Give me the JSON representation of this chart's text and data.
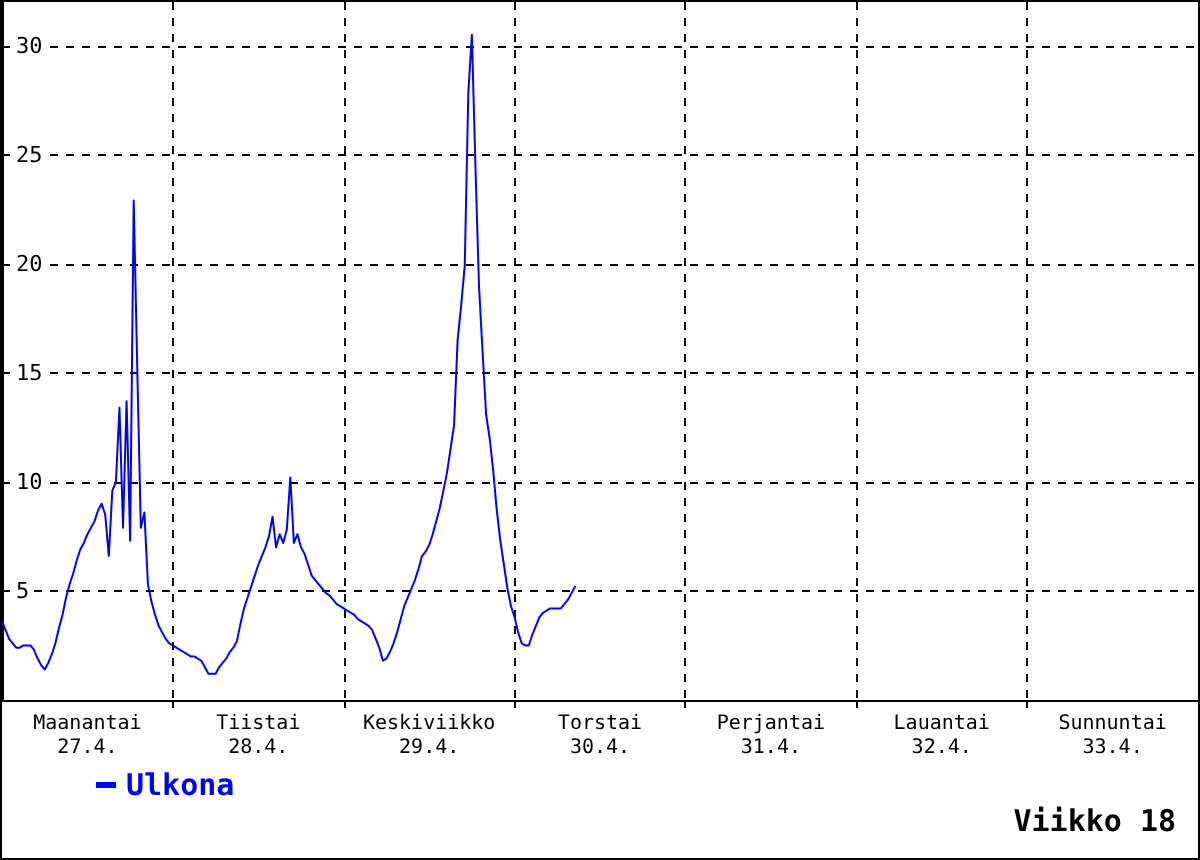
{
  "chart_data": {
    "type": "line",
    "title": "Viikko 18",
    "categories": [
      null,
      null,
      null,
      null,
      null,
      null,
      null,
      null,
      null,
      null,
      null,
      null,
      null,
      null,
      null,
      null,
      null,
      null,
      null,
      null,
      null,
      null,
      null,
      null,
      "Maanantai\n27.4.",
      null,
      null,
      null,
      null,
      null,
      null,
      null,
      null,
      null,
      null,
      null,
      null,
      null,
      null,
      null,
      null,
      null,
      null,
      null,
      null,
      null,
      null,
      null,
      null,
      null,
      null,
      null,
      null,
      null,
      null,
      null,
      null,
      null,
      null,
      null,
      null,
      null,
      null,
      null,
      null,
      null,
      null,
      null,
      null,
      null,
      null,
      null,
      "Tiistai\n28.4.",
      null,
      null,
      null,
      null,
      null,
      null,
      null,
      null,
      null,
      null,
      null,
      null,
      null,
      null,
      null,
      null,
      null,
      null,
      null,
      null,
      null,
      null,
      null,
      null,
      null,
      null,
      null,
      null,
      null,
      null,
      null,
      null,
      null,
      null,
      null,
      null,
      null,
      null,
      null,
      null,
      null,
      null,
      null,
      null,
      null,
      null,
      null,
      "Keskiviikko\n29.4.",
      null,
      null,
      null,
      null,
      null,
      null,
      null,
      null,
      null,
      null,
      null,
      null,
      null,
      null,
      null,
      null,
      null,
      null,
      null,
      null,
      null,
      null,
      null,
      null,
      null,
      null,
      null,
      null,
      null,
      null,
      null,
      null,
      null,
      null,
      null,
      null,
      null,
      null,
      null,
      null,
      null,
      null,
      null,
      null,
      null,
      null,
      null,
      "Torstai\n30.4.",
      null,
      null,
      null,
      null,
      null,
      null,
      null,
      null,
      null,
      null,
      null,
      null,
      null,
      null,
      null,
      null,
      null,
      null,
      null,
      null,
      null,
      null,
      null,
      null,
      null,
      null,
      null,
      null,
      null,
      null,
      null,
      null,
      null,
      null,
      null,
      null,
      null,
      null,
      null,
      null,
      null,
      null,
      null,
      null,
      null,
      null,
      null,
      "Perjantai\n31.4.",
      null,
      null,
      null,
      null,
      null,
      null,
      null,
      null,
      null,
      null,
      null,
      null,
      null,
      null,
      null,
      null,
      null,
      null,
      null,
      null,
      null,
      null,
      null,
      null,
      null,
      null,
      null,
      null,
      null,
      null,
      null,
      null,
      null,
      null,
      null,
      null,
      null,
      null,
      null,
      null,
      null,
      null,
      null,
      null,
      null,
      null,
      null,
      "Lauantai\n32.4.",
      null,
      null,
      null,
      null,
      null,
      null,
      null,
      null,
      null,
      null,
      null,
      null,
      null,
      null,
      null,
      null,
      null,
      null,
      null,
      null,
      null,
      null,
      null,
      null,
      null,
      null,
      null,
      null,
      null,
      null,
      null,
      null,
      null,
      null,
      null,
      null,
      null,
      null,
      null,
      null,
      null,
      null,
      null,
      null,
      null,
      null,
      null,
      "Sunnuntai\n33.4.",
      null,
      null,
      null,
      null,
      null,
      null,
      null,
      null,
      null,
      null,
      null,
      null,
      null,
      null,
      null,
      null,
      null,
      null,
      null,
      null,
      null,
      null,
      null,
      null
    ],
    "series": [
      {
        "name": "Ulkona",
        "color": "#0000ff",
        "values": [
          3.6,
          3.2,
          2.8,
          2.6,
          2.4,
          2.4,
          2.5,
          2.5,
          2.5,
          2.3,
          1.9,
          1.6,
          1.4,
          1.7,
          2.1,
          2.6,
          3.3,
          3.9,
          4.7,
          5.3,
          5.8,
          6.4,
          6.9,
          7.2,
          7.6,
          7.9,
          8.2,
          8.7,
          9.0,
          8.5,
          6.6,
          9.6,
          10.0,
          13.4,
          7.9,
          13.7,
          7.3,
          22.9,
          15.2,
          7.9,
          8.6,
          5.3,
          4.5,
          3.9,
          3.4,
          3.1,
          2.8,
          2.6,
          2.5,
          2.4,
          2.3,
          2.2,
          2.1,
          2.0,
          2.0,
          1.9,
          1.8,
          1.5,
          1.2,
          1.2,
          1.2,
          1.5,
          1.7,
          1.9,
          2.2,
          2.4,
          2.7,
          3.5,
          4.2,
          4.7,
          5.2,
          5.7,
          6.2,
          6.6,
          7.0,
          7.5,
          8.4,
          7.0,
          7.6,
          7.2,
          7.8,
          10.2,
          7.2,
          7.6,
          7.0,
          6.7,
          6.2,
          5.7,
          5.5,
          5.3,
          5.1,
          4.9,
          4.8,
          4.6,
          4.4,
          4.3,
          4.2,
          4.1,
          4.0,
          3.9,
          3.7,
          3.6,
          3.5,
          3.4,
          3.2,
          2.8,
          2.4,
          1.8,
          1.9,
          2.2,
          2.6,
          3.1,
          3.7,
          4.3,
          4.7,
          5.1,
          5.5,
          6.0,
          6.6,
          6.8,
          7.1,
          7.6,
          8.2,
          8.8,
          9.6,
          10.4,
          11.5,
          12.6,
          16.5,
          18.1,
          19.9,
          27.8,
          30.5,
          24.5,
          19.0,
          16.0,
          13.1,
          12.0,
          10.5,
          8.7,
          7.3,
          6.2,
          5.1,
          4.3,
          3.8,
          3.1,
          2.6,
          2.5,
          2.5,
          3.0,
          3.4,
          3.8,
          4.0,
          4.1,
          4.2,
          4.2,
          4.2,
          4.2,
          4.4,
          4.6,
          4.9,
          5.2,
          null,
          null,
          null,
          null,
          null,
          null,
          null,
          null,
          null,
          null,
          null,
          null,
          null,
          null,
          null,
          null,
          null,
          null,
          null,
          null,
          null,
          null,
          null,
          null,
          null,
          null,
          null,
          null,
          null,
          null,
          null,
          null,
          null,
          null,
          null,
          null,
          null,
          null,
          null,
          null,
          null,
          null,
          null,
          null,
          null,
          null,
          null,
          null,
          null,
          null,
          null,
          null,
          null,
          null,
          null,
          null,
          null,
          null,
          null,
          null,
          null,
          null,
          null,
          null,
          null,
          null,
          null,
          null,
          null,
          null,
          null,
          null,
          null,
          null,
          null,
          null,
          null,
          null,
          null,
          null,
          null,
          null,
          null,
          null,
          null,
          null,
          null,
          null,
          null,
          null,
          null,
          null,
          null,
          null,
          null,
          null,
          null,
          null,
          null,
          null,
          null,
          null,
          null,
          null,
          null,
          null,
          null,
          null,
          null,
          null,
          null,
          null,
          null,
          null,
          null,
          null,
          null,
          null,
          null,
          null,
          null,
          null,
          null,
          null,
          null,
          null,
          null,
          null,
          null,
          null,
          null,
          null,
          null,
          null,
          null,
          null,
          null,
          null,
          null,
          null,
          null,
          null,
          null,
          null,
          null,
          null,
          null,
          null,
          null,
          null,
          null,
          null,
          null,
          null,
          null,
          null,
          null,
          null,
          null,
          null,
          null,
          null,
          null,
          null,
          null,
          null,
          null,
          null,
          null,
          null,
          null,
          null,
          null,
          null,
          null
        ]
      }
    ],
    "ylim": [
      0,
      32
    ],
    "yticks": [
      5,
      10,
      15,
      20,
      25,
      30
    ],
    "grid": true,
    "legend": "bottom left",
    "marker": "none"
  }
}
